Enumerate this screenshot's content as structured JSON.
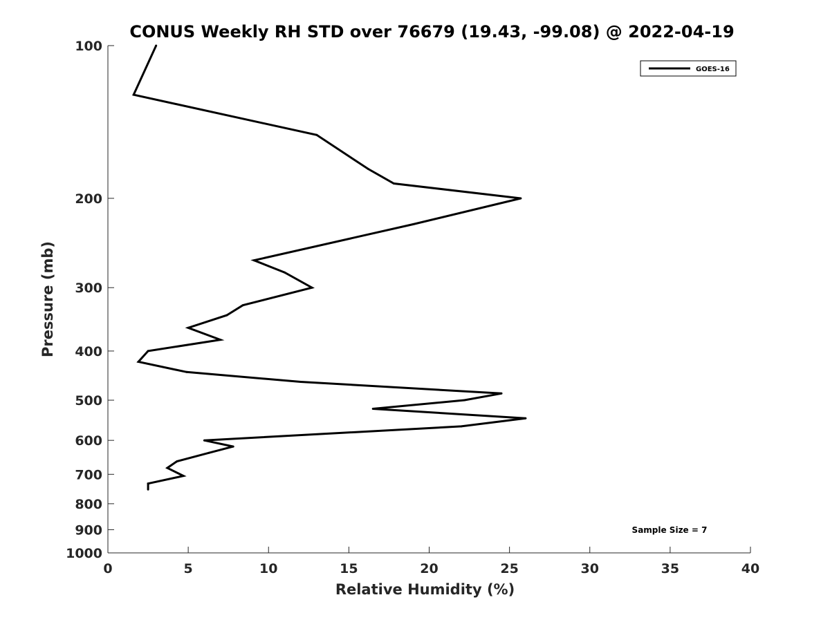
{
  "chart_data": {
    "type": "line",
    "title": "CONUS Weekly RH STD over 76679 (19.43, -99.08) @ 2022-04-19",
    "xlabel": "Relative Humidity (%)",
    "ylabel": "Pressure (mb)",
    "xlim": [
      0,
      40
    ],
    "ylim": [
      100,
      1000
    ],
    "y_scale": "log",
    "y_reversed": true,
    "grid": false,
    "x_ticks": [
      0,
      5,
      10,
      15,
      20,
      25,
      30,
      35,
      40
    ],
    "x_tick_labels": [
      "0",
      "5",
      "10",
      "15",
      "20",
      "25",
      "30",
      "35",
      "40"
    ],
    "y_ticks": [
      100,
      200,
      300,
      400,
      500,
      600,
      700,
      800,
      900,
      1000
    ],
    "y_tick_labels": [
      "100",
      "200",
      "300",
      "400",
      "500",
      "600",
      "700",
      "800",
      "900",
      "1000"
    ],
    "legend_position": "top-right",
    "series": [
      {
        "name": "GOES-16",
        "color": "#000000",
        "points": [
          {
            "x": 3.0,
            "y": 100
          },
          {
            "x": 1.6,
            "y": 125
          },
          {
            "x": 13.0,
            "y": 150
          },
          {
            "x": 16.2,
            "y": 175
          },
          {
            "x": 17.8,
            "y": 187
          },
          {
            "x": 25.7,
            "y": 200
          },
          {
            "x": 19.0,
            "y": 225
          },
          {
            "x": 9.1,
            "y": 265
          },
          {
            "x": 11.0,
            "y": 280
          },
          {
            "x": 12.7,
            "y": 300
          },
          {
            "x": 8.4,
            "y": 325
          },
          {
            "x": 7.4,
            "y": 340
          },
          {
            "x": 5.0,
            "y": 360
          },
          {
            "x": 7.0,
            "y": 380
          },
          {
            "x": 2.5,
            "y": 400
          },
          {
            "x": 1.9,
            "y": 420
          },
          {
            "x": 4.9,
            "y": 440
          },
          {
            "x": 12.0,
            "y": 460
          },
          {
            "x": 24.5,
            "y": 485
          },
          {
            "x": 22.2,
            "y": 500
          },
          {
            "x": 16.5,
            "y": 520
          },
          {
            "x": 26.0,
            "y": 543
          },
          {
            "x": 22.0,
            "y": 563
          },
          {
            "x": 6.0,
            "y": 600
          },
          {
            "x": 7.8,
            "y": 617
          },
          {
            "x": 6.3,
            "y": 635
          },
          {
            "x": 4.3,
            "y": 660
          },
          {
            "x": 3.7,
            "y": 680
          },
          {
            "x": 4.7,
            "y": 705
          },
          {
            "x": 2.5,
            "y": 730
          },
          {
            "x": 2.5,
            "y": 750
          }
        ]
      }
    ],
    "annotation": "Sample Size = 7"
  }
}
